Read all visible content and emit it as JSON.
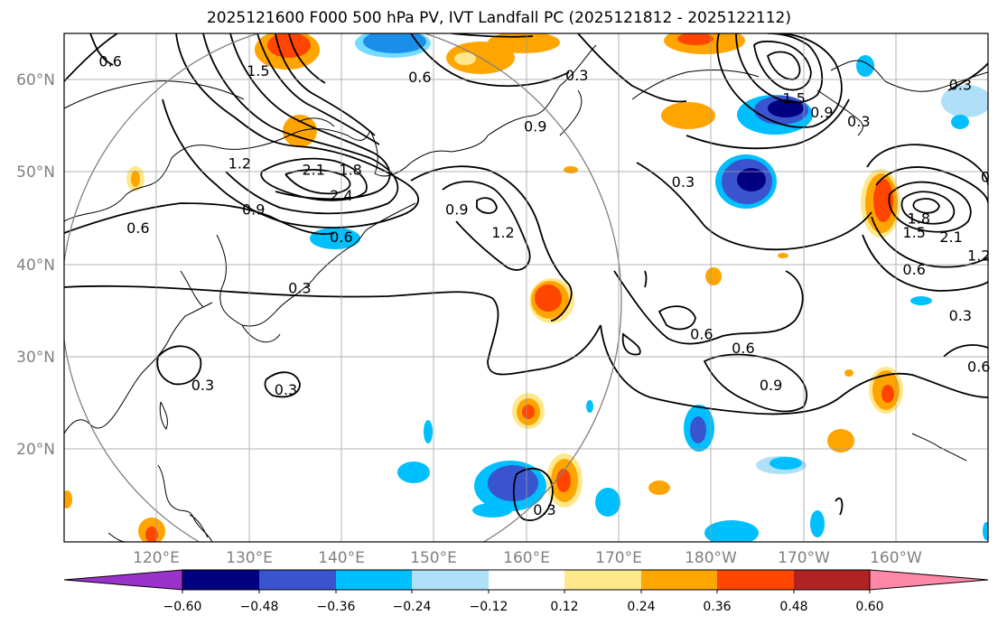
{
  "title": "2025121600 F000 500 hPa PV, IVT Landfall PC (2025121812 - 2025122112)",
  "map": {
    "projection": "PlateCarree",
    "lon_range": [
      110,
      210
    ],
    "lat_range": [
      10,
      65
    ],
    "lat_ticks": [
      {
        "value": 60,
        "label": "60°N"
      },
      {
        "value": 50,
        "label": "50°N"
      },
      {
        "value": 40,
        "label": "40°N"
      },
      {
        "value": 30,
        "label": "30°N"
      },
      {
        "value": 20,
        "label": "20°N"
      }
    ],
    "lon_ticks": [
      {
        "value": 120,
        "label": "120°E"
      },
      {
        "value": 130,
        "label": "130°E"
      },
      {
        "value": 140,
        "label": "140°E"
      },
      {
        "value": 150,
        "label": "150°E"
      },
      {
        "value": 160,
        "label": "160°E"
      },
      {
        "value": 170,
        "label": "170°E"
      },
      {
        "value": 180,
        "label": "180°W"
      },
      {
        "value": 190,
        "label": "170°W"
      },
      {
        "value": 200,
        "label": "160°W"
      }
    ],
    "region_circle": {
      "center_lon": 140,
      "center_lat": 40,
      "radius_deg_lon": 30,
      "color": "#808080"
    },
    "grid": true,
    "contour_labels": [
      {
        "text": "0.6",
        "lon": 115,
        "lat": 62
      },
      {
        "text": "1.5",
        "lon": 131,
        "lat": 61
      },
      {
        "text": "0.6",
        "lon": 148.5,
        "lat": 60.3
      },
      {
        "text": "0.3",
        "lon": 165.5,
        "lat": 60.5
      },
      {
        "text": "0.9",
        "lon": 161,
        "lat": 55
      },
      {
        "text": "1.2",
        "lon": 129,
        "lat": 51
      },
      {
        "text": "2.1",
        "lon": 137,
        "lat": 50.3
      },
      {
        "text": "1.8",
        "lon": 141,
        "lat": 50.3
      },
      {
        "text": "2.4",
        "lon": 140,
        "lat": 47.5
      },
      {
        "text": "0.9",
        "lon": 130.5,
        "lat": 46
      },
      {
        "text": "0.6",
        "lon": 118,
        "lat": 44
      },
      {
        "text": "0.6",
        "lon": 140,
        "lat": 43
      },
      {
        "text": "0.9",
        "lon": 152.5,
        "lat": 46
      },
      {
        "text": "1.2",
        "lon": 157.5,
        "lat": 43.5
      },
      {
        "text": "0.3",
        "lon": 135.5,
        "lat": 37.5
      },
      {
        "text": "0.3",
        "lon": 125,
        "lat": 27
      },
      {
        "text": "0.3",
        "lon": 134,
        "lat": 26.5
      },
      {
        "text": "0.3",
        "lon": 162,
        "lat": 13.5
      },
      {
        "text": "1.5",
        "lon": 189,
        "lat": 58
      },
      {
        "text": "0.9",
        "lon": 192,
        "lat": 56.5
      },
      {
        "text": "0.3",
        "lon": 196,
        "lat": 55.5
      },
      {
        "text": "0.3",
        "lon": 177,
        "lat": 49
      },
      {
        "text": "0.6",
        "lon": 179,
        "lat": 32.5
      },
      {
        "text": "0.6",
        "lon": 183.5,
        "lat": 31
      },
      {
        "text": "0.9",
        "lon": 186.5,
        "lat": 27
      },
      {
        "text": "0.6",
        "lon": 202,
        "lat": 39.5
      },
      {
        "text": "2.1",
        "lon": 206,
        "lat": 43
      },
      {
        "text": "1.8",
        "lon": 202.5,
        "lat": 45
      },
      {
        "text": "1.5",
        "lon": 202,
        "lat": 43.5
      },
      {
        "text": "0.3",
        "lon": 207,
        "lat": 59.5
      },
      {
        "text": "0.3",
        "lon": 207,
        "lat": 34.5
      },
      {
        "text": "0.6",
        "lon": 209,
        "lat": 29
      },
      {
        "text": "1.2",
        "lon": 209,
        "lat": 41
      },
      {
        "text": "0",
        "lon": 209.7,
        "lat": 49.5
      }
    ]
  },
  "colorbar": {
    "colors": [
      "#9933cc",
      "#000080",
      "#3a54d0",
      "#00bfff",
      "#afe0f8",
      "#ffffff",
      "#ffe88c",
      "#ffa500",
      "#ff4500",
      "#b22222",
      "#ff88aa"
    ],
    "labels": [
      "−0.60",
      "−0.48",
      "−0.36",
      "−0.24",
      "−0.12",
      "0.12",
      "0.24",
      "0.36",
      "0.48",
      "0.60"
    ]
  }
}
